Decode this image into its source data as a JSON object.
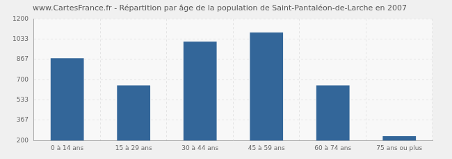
{
  "chart_data": {
    "type": "bar",
    "title": "www.CartesFrance.fr - Répartition par âge de la population de Saint-Pantaléon-de-Larche en 2007",
    "categories": [
      "0 à 14 ans",
      "15 à 29 ans",
      "30 à 44 ans",
      "45 à 59 ans",
      "60 à 74 ans",
      "75 ans ou plus"
    ],
    "values": [
      876,
      653,
      1012,
      1088,
      653,
      235
    ],
    "color": "#336699",
    "ylim": [
      200,
      1200
    ],
    "yticks": [
      200,
      367,
      533,
      700,
      867,
      1033,
      1200
    ],
    "grid": true
  }
}
